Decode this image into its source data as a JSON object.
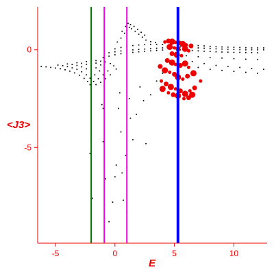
{
  "chart_data": {
    "type": "scatter",
    "xlabel": "E",
    "ylabel": "<J3>",
    "xlim": [
      -6.5,
      12.8
    ],
    "ylim": [
      -9.9,
      2.2
    ],
    "x_ticks": [
      {
        "value": -5,
        "label": "-5"
      },
      {
        "value": 0,
        "label": "0"
      },
      {
        "value": 5,
        "label": "5"
      },
      {
        "value": 10,
        "label": "10"
      }
    ],
    "y_ticks": [
      {
        "value": 0,
        "label": "0"
      },
      {
        "value": -5,
        "label": "-5"
      }
    ],
    "vertical_lines": [
      {
        "x": -2.0,
        "color": "#007700"
      },
      {
        "x": -0.9,
        "color": "#ee00ee"
      },
      {
        "x": 1.0,
        "color": "#ee00ee"
      },
      {
        "x": 5.3,
        "color": "#0000ff"
      }
    ],
    "series": [
      {
        "color": "#000000",
        "marker": "small-dot",
        "points": [
          [
            -6.2,
            -0.85
          ],
          [
            -5.8,
            -0.87
          ],
          [
            -5.4,
            -0.9
          ],
          [
            -5.0,
            -0.93
          ],
          [
            -4.6,
            -0.97
          ],
          [
            -4.2,
            -1.02
          ],
          [
            -3.8,
            -1.09
          ],
          [
            -3.4,
            -1.18
          ],
          [
            -3.0,
            -1.3
          ],
          [
            -2.6,
            -1.46
          ],
          [
            -2.3,
            -1.62
          ],
          [
            -2.1,
            -1.78
          ],
          [
            -4.8,
            -0.78
          ],
          [
            -4.4,
            -0.81
          ],
          [
            -4.0,
            -0.86
          ],
          [
            -3.6,
            -0.92
          ],
          [
            -3.2,
            -1.0
          ],
          [
            -2.8,
            -1.12
          ],
          [
            -2.4,
            -1.28
          ],
          [
            -2.1,
            -1.45
          ],
          [
            -1.8,
            -1.62
          ],
          [
            -1.6,
            -1.78
          ],
          [
            -4.0,
            -0.72
          ],
          [
            -3.6,
            -0.75
          ],
          [
            -3.2,
            -0.8
          ],
          [
            -2.8,
            -0.87
          ],
          [
            -2.4,
            -0.97
          ],
          [
            -2.0,
            -1.1
          ],
          [
            -1.7,
            -1.28
          ],
          [
            -1.4,
            -1.48
          ],
          [
            -1.2,
            -1.66
          ],
          [
            -3.2,
            -0.66
          ],
          [
            -2.8,
            -0.69
          ],
          [
            -2.4,
            -0.74
          ],
          [
            -2.0,
            -0.81
          ],
          [
            -1.6,
            -0.92
          ],
          [
            -1.3,
            -1.08
          ],
          [
            -1.0,
            -1.28
          ],
          [
            -0.8,
            -1.48
          ],
          [
            -2.4,
            -0.6
          ],
          [
            -2.0,
            -0.63
          ],
          [
            -1.6,
            -0.68
          ],
          [
            -1.2,
            -0.77
          ],
          [
            -0.9,
            -0.9
          ],
          [
            -0.6,
            -1.08
          ],
          [
            -0.4,
            -1.28
          ],
          [
            -1.6,
            -0.55
          ],
          [
            -1.2,
            -0.58
          ],
          [
            -0.8,
            -0.62
          ],
          [
            -0.4,
            -0.7
          ],
          [
            -0.1,
            -0.82
          ],
          [
            0.1,
            -0.98
          ],
          [
            -1.0,
            -0.4
          ],
          [
            -0.5,
            -0.32
          ],
          [
            0.0,
            -0.25
          ],
          [
            0.5,
            -0.2
          ],
          [
            1.0,
            -0.16
          ],
          [
            1.5,
            -0.13
          ],
          [
            2.0,
            -0.1
          ],
          [
            2.5,
            -0.08
          ],
          [
            3.0,
            -0.05
          ],
          [
            3.5,
            -0.03
          ],
          [
            4.0,
            -0.01
          ],
          [
            -0.5,
            -0.15
          ],
          [
            0.0,
            -0.1
          ],
          [
            0.5,
            -0.06
          ],
          [
            1.0,
            -0.03
          ],
          [
            1.5,
            0.0
          ],
          [
            2.0,
            0.02
          ],
          [
            2.5,
            0.04
          ],
          [
            3.0,
            0.06
          ],
          [
            3.5,
            0.08
          ],
          [
            4.0,
            0.1
          ],
          [
            0.0,
            0.05
          ],
          [
            0.5,
            0.12
          ],
          [
            1.0,
            0.18
          ],
          [
            1.5,
            0.22
          ],
          [
            2.0,
            0.25
          ],
          [
            2.5,
            0.27
          ],
          [
            3.0,
            0.28
          ],
          [
            3.5,
            0.28
          ],
          [
            4.0,
            0.27
          ],
          [
            0.2,
            0.4
          ],
          [
            0.5,
            0.6
          ],
          [
            0.8,
            0.85
          ],
          [
            1.0,
            1.0
          ],
          [
            1.2,
            1.15
          ],
          [
            1.4,
            1.08
          ],
          [
            1.7,
            0.95
          ],
          [
            2.0,
            0.8
          ],
          [
            2.3,
            0.65
          ],
          [
            2.6,
            0.5
          ],
          [
            3.0,
            0.42
          ],
          [
            3.4,
            0.38
          ],
          [
            0.6,
            0.95
          ],
          [
            0.9,
            1.2
          ],
          [
            1.1,
            1.35
          ],
          [
            1.3,
            1.3
          ],
          [
            1.6,
            1.2
          ],
          [
            1.9,
            1.05
          ],
          [
            2.2,
            0.9
          ],
          [
            2.5,
            0.75
          ],
          [
            5.5,
            0.3
          ],
          [
            6.0,
            0.28
          ],
          [
            6.5,
            0.25
          ],
          [
            7.0,
            0.22
          ],
          [
            7.5,
            0.2
          ],
          [
            8.0,
            0.18
          ],
          [
            8.5,
            0.16
          ],
          [
            9.0,
            0.15
          ],
          [
            9.5,
            0.14
          ],
          [
            10.0,
            0.13
          ],
          [
            10.5,
            0.12
          ],
          [
            11.0,
            0.11
          ],
          [
            11.5,
            0.1
          ],
          [
            12.0,
            0.1
          ],
          [
            12.5,
            0.1
          ],
          [
            5.5,
            0.15
          ],
          [
            6.0,
            0.14
          ],
          [
            6.5,
            0.12
          ],
          [
            7.0,
            0.1
          ],
          [
            7.5,
            0.08
          ],
          [
            8.0,
            0.07
          ],
          [
            8.5,
            0.05
          ],
          [
            9.0,
            0.04
          ],
          [
            9.5,
            0.03
          ],
          [
            10.0,
            0.02
          ],
          [
            10.5,
            0.01
          ],
          [
            11.0,
            0.0
          ],
          [
            11.5,
            0.0
          ],
          [
            12.0,
            0.0
          ],
          [
            12.5,
            0.0
          ],
          [
            5.5,
            0.0
          ],
          [
            6.0,
            -0.02
          ],
          [
            6.5,
            -0.03
          ],
          [
            7.0,
            -0.05
          ],
          [
            7.5,
            -0.07
          ],
          [
            8.0,
            -0.08
          ],
          [
            8.5,
            -0.1
          ],
          [
            9.0,
            -0.11
          ],
          [
            9.5,
            -0.12
          ],
          [
            10.0,
            -0.13
          ],
          [
            10.5,
            -0.13
          ],
          [
            11.0,
            -0.14
          ],
          [
            11.5,
            -0.14
          ],
          [
            12.0,
            -0.15
          ],
          [
            6.0,
            -0.3
          ],
          [
            7.0,
            -0.35
          ],
          [
            8.0,
            -0.4
          ],
          [
            9.0,
            -0.42
          ],
          [
            10.0,
            -0.45
          ],
          [
            11.0,
            -0.48
          ],
          [
            12.0,
            -0.5
          ],
          [
            6.5,
            -0.6
          ],
          [
            7.5,
            -0.7
          ],
          [
            8.5,
            -0.8
          ],
          [
            9.5,
            -0.85
          ],
          [
            10.5,
            -0.9
          ],
          [
            11.5,
            -0.95
          ],
          [
            12.5,
            -1.0
          ],
          [
            7.0,
            -0.9
          ],
          [
            8.0,
            -1.0
          ],
          [
            9.0,
            -1.05
          ],
          [
            10.0,
            -1.1
          ],
          [
            11.0,
            -1.15
          ],
          [
            12.0,
            -1.2
          ],
          [
            -2.0,
            -4.6
          ],
          [
            -2.1,
            -5.3
          ],
          [
            -1.9,
            -7.6
          ],
          [
            -1.1,
            -2.8
          ],
          [
            -1.0,
            -3.0
          ],
          [
            -0.9,
            -3.4
          ],
          [
            -1.0,
            -4.7
          ],
          [
            -0.9,
            -6.0
          ],
          [
            -0.8,
            -6.6
          ],
          [
            -0.9,
            -8.6
          ],
          [
            -0.5,
            -8.8
          ],
          [
            -0.2,
            -7.8
          ],
          [
            0.0,
            -6.5
          ],
          [
            0.1,
            -5.9
          ],
          [
            0.4,
            -2.2
          ],
          [
            0.3,
            -3.0
          ],
          [
            0.5,
            -4.2
          ],
          [
            0.6,
            -6.3
          ],
          [
            0.7,
            -7.7
          ],
          [
            0.9,
            -5.4
          ],
          [
            1.0,
            -6.0
          ],
          [
            1.0,
            -8.3
          ],
          [
            1.2,
            -2.5
          ],
          [
            1.3,
            -3.5
          ],
          [
            1.5,
            -4.6
          ],
          [
            1.8,
            -3.3
          ],
          [
            2.1,
            -1.9
          ],
          [
            2.4,
            -2.6
          ],
          [
            2.6,
            -4.8
          ],
          [
            3.0,
            -2.3
          ],
          [
            3.5,
            -1.6
          ],
          [
            4.0,
            -1.2
          ]
        ]
      },
      {
        "color": "#ee0000",
        "marker": "blob",
        "points": [
          [
            4.2,
            0.4
          ],
          [
            4.5,
            0.45
          ],
          [
            4.8,
            0.42
          ],
          [
            5.1,
            0.38
          ],
          [
            5.4,
            0.35
          ],
          [
            5.7,
            0.3
          ],
          [
            6.0,
            0.25
          ],
          [
            6.4,
            0.2
          ],
          [
            4.6,
            0.15
          ],
          [
            5.0,
            0.1
          ],
          [
            5.3,
            0.05
          ],
          [
            5.9,
            0.05
          ],
          [
            6.2,
            -0.05
          ],
          [
            4.8,
            -0.2
          ],
          [
            5.2,
            -0.25
          ],
          [
            5.6,
            -0.3
          ],
          [
            4.4,
            -0.55
          ],
          [
            4.8,
            -0.65
          ],
          [
            5.1,
            -0.75
          ],
          [
            5.5,
            -0.8
          ],
          [
            5.9,
            -0.7
          ],
          [
            6.2,
            -0.9
          ],
          [
            3.8,
            -0.85
          ],
          [
            4.2,
            -1.05
          ],
          [
            4.6,
            -1.15
          ],
          [
            5.0,
            -1.25
          ],
          [
            5.3,
            -1.4
          ],
          [
            5.7,
            -1.5
          ],
          [
            6.1,
            -1.35
          ],
          [
            6.6,
            -1.2
          ],
          [
            3.9,
            -1.6
          ],
          [
            4.3,
            -1.75
          ],
          [
            4.7,
            -1.9
          ],
          [
            5.1,
            -2.0
          ],
          [
            5.5,
            -2.1
          ],
          [
            5.9,
            -2.25
          ],
          [
            6.3,
            -2.1
          ],
          [
            6.7,
            -1.95
          ],
          [
            4.0,
            -2.0
          ],
          [
            4.5,
            -2.2
          ],
          [
            4.9,
            -2.3
          ],
          [
            5.3,
            -2.35
          ],
          [
            5.8,
            -2.5
          ],
          [
            6.2,
            -2.45
          ],
          [
            6.5,
            -2.3
          ],
          [
            7.2,
            -1.6
          ]
        ]
      }
    ]
  }
}
